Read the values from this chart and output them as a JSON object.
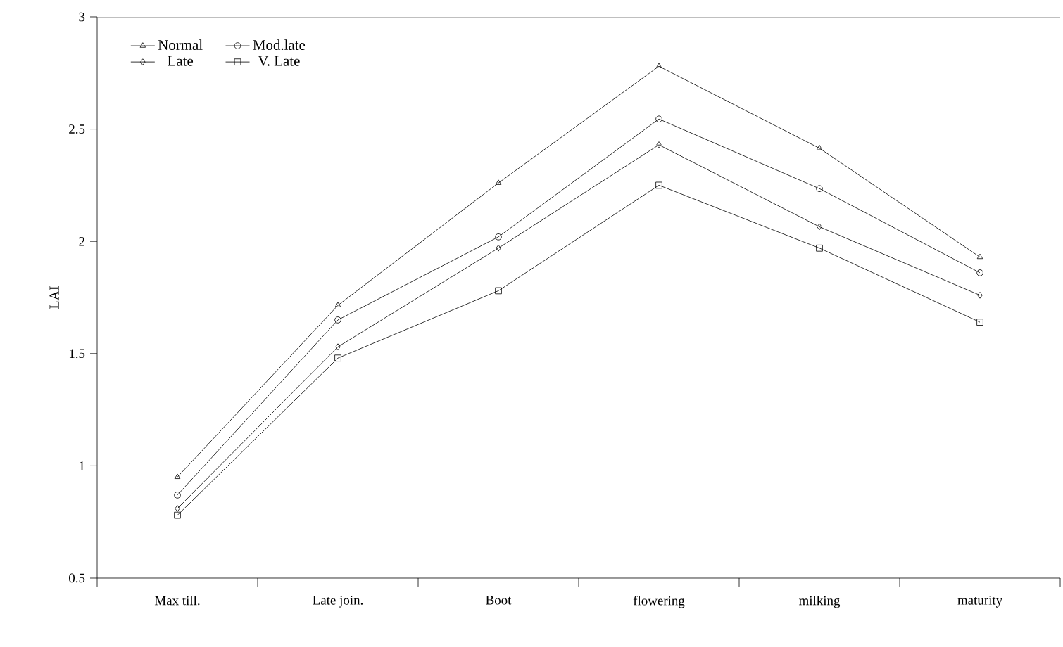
{
  "chart_data": {
    "type": "line",
    "ylabel": "LAI",
    "categories": [
      "Max till.",
      "Late join.",
      "Boot",
      "flowering",
      "milking",
      "maturity"
    ],
    "ylim": [
      0.5,
      3
    ],
    "yticks": [
      0.5,
      1,
      1.5,
      2,
      2.5,
      3
    ],
    "legend": "top left",
    "line_style": "solid",
    "series": [
      {
        "name": "Normal",
        "color": "#000000",
        "marker": "triangle",
        "values": [
          0.95,
          1.715,
          2.26,
          2.78,
          2.415,
          1.93
        ]
      },
      {
        "name": "Mod.late",
        "color": "#000000",
        "marker": "circle",
        "values": [
          0.87,
          1.65,
          2.02,
          2.545,
          2.235,
          1.86
        ]
      },
      {
        "name": "Late",
        "color": "#000000",
        "marker": "diamond",
        "values": [
          0.81,
          1.53,
          1.97,
          2.43,
          2.065,
          1.76
        ]
      },
      {
        "name": "V. Late",
        "color": "#000000",
        "marker": "square",
        "values": [
          0.78,
          1.48,
          1.78,
          2.25,
          1.97,
          1.64
        ]
      }
    ]
  }
}
